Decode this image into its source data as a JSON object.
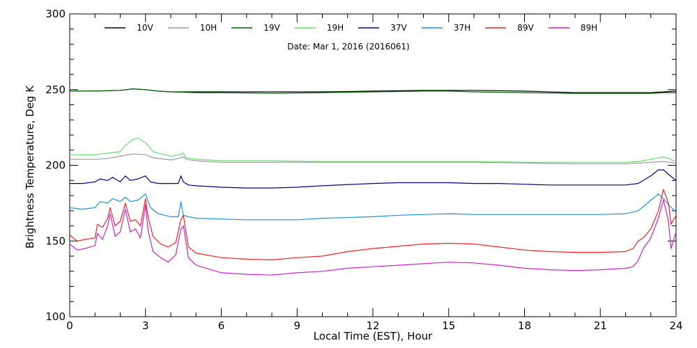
{
  "chart_data": {
    "type": "line",
    "title": "",
    "annotation": "Date: Mar  1, 2016 (2016061)",
    "xlabel": "Local Time (EST), Hour",
    "ylabel": "Brightness Temperature, Deg K",
    "xlim": [
      0,
      24
    ],
    "ylim": [
      100,
      300
    ],
    "xticks": [
      0,
      3,
      6,
      9,
      12,
      15,
      18,
      21,
      24
    ],
    "yticks": [
      100,
      150,
      200,
      250,
      300
    ],
    "grid": false,
    "legend_position": "top, single row",
    "series": [
      {
        "name": "10V",
        "color": "#000000",
        "x": [
          0,
          1,
          2,
          2.5,
          3,
          3.5,
          4,
          5,
          6,
          8,
          10,
          12,
          14,
          15,
          16,
          18,
          20,
          22,
          23,
          23.5,
          24
        ],
        "y": [
          249,
          249,
          249.5,
          250.5,
          250,
          249,
          248.5,
          248.5,
          248.5,
          248.5,
          248.5,
          249,
          249.5,
          249.5,
          249.5,
          249,
          248,
          248,
          248,
          248.5,
          249
        ]
      },
      {
        "name": "10H",
        "color": "#999999",
        "x": [
          0,
          1,
          1.5,
          2,
          2.5,
          3,
          3.3,
          4,
          4.4,
          4.5,
          4.6,
          5,
          6,
          8,
          10,
          12,
          14,
          16,
          18,
          20,
          22,
          23,
          23.5,
          23.8,
          24
        ],
        "y": [
          204,
          204,
          204.5,
          206,
          207.5,
          207,
          205,
          203.5,
          205,
          205.5,
          204,
          203,
          202,
          202,
          202,
          202,
          202,
          202,
          201.5,
          201,
          201,
          202,
          202.5,
          202,
          201
        ]
      },
      {
        "name": "19V",
        "color": "#006400",
        "x": [
          0,
          1,
          2,
          2.5,
          3,
          3.5,
          4,
          5,
          6,
          8,
          10,
          12,
          14,
          15,
          16,
          18,
          20,
          22,
          23,
          23.5,
          24
        ],
        "y": [
          249,
          249,
          249.5,
          250.5,
          250,
          249,
          248.5,
          248,
          248,
          247.5,
          248,
          248.5,
          249,
          249,
          248.5,
          248,
          247.5,
          247.5,
          247.5,
          248,
          248
        ]
      },
      {
        "name": "19H",
        "color": "#66dd66",
        "x": [
          0,
          1,
          1.5,
          2,
          2.2,
          2.5,
          2.7,
          3,
          3.3,
          4,
          4.4,
          4.5,
          4.6,
          5,
          6,
          8,
          10,
          12,
          14,
          16,
          18,
          20,
          22,
          22.5,
          23,
          23.5,
          23.8,
          24
        ],
        "y": [
          207,
          207,
          208,
          209,
          213,
          217,
          218,
          215,
          209,
          206,
          207,
          208,
          205,
          204,
          203,
          203,
          202.5,
          202.5,
          202.5,
          202.5,
          202,
          202,
          202,
          202.5,
          204,
          205.5,
          204,
          202
        ]
      },
      {
        "name": "37V",
        "color": "#00008b",
        "x": [
          0,
          0.5,
          1,
          1.2,
          1.5,
          1.7,
          2,
          2.2,
          2.4,
          2.7,
          3,
          3.2,
          3.5,
          4,
          4.3,
          4.4,
          4.5,
          4.7,
          5,
          6,
          7,
          8,
          9,
          10,
          12,
          13,
          14,
          15,
          16,
          17,
          18,
          19,
          20,
          21,
          22,
          22.5,
          23,
          23.3,
          23.5,
          23.7,
          24
        ],
        "y": [
          188,
          188,
          189,
          191,
          190,
          192,
          189,
          193,
          190,
          191,
          193,
          189,
          188,
          188,
          188,
          193,
          189,
          187,
          186.5,
          185.5,
          185,
          185,
          185.5,
          186.5,
          188,
          188.5,
          188.5,
          188.5,
          188,
          188,
          187.5,
          187,
          187,
          187,
          187,
          188,
          193,
          197,
          197,
          194,
          190
        ]
      },
      {
        "name": "37H",
        "color": "#1e8fdc",
        "x": [
          0,
          0.5,
          1,
          1.2,
          1.5,
          1.7,
          2,
          2.2,
          2.4,
          2.7,
          3,
          3.2,
          3.5,
          4,
          4.3,
          4.4,
          4.5,
          4.7,
          5,
          6,
          7,
          8,
          9,
          10,
          12,
          13,
          14,
          15,
          16,
          17,
          18,
          19,
          20,
          21,
          22,
          22.5,
          22.8,
          23,
          23.3,
          23.5,
          23.7,
          24
        ],
        "y": [
          172,
          171,
          172,
          176,
          175,
          178,
          176,
          179,
          176,
          177,
          181,
          172,
          168,
          166,
          166,
          176,
          167,
          166,
          165,
          164.5,
          164,
          164,
          164,
          165,
          166,
          167,
          167.5,
          168,
          167.5,
          167.5,
          167.5,
          167.5,
          167.5,
          167.5,
          168,
          170,
          174,
          177,
          181,
          178,
          174,
          169
        ]
      },
      {
        "name": "89V",
        "color": "#ee2222",
        "x": [
          0,
          0.3,
          0.6,
          1,
          1.1,
          1.3,
          1.5,
          1.6,
          1.8,
          2,
          2.2,
          2.4,
          2.6,
          2.8,
          3,
          3.1,
          3.3,
          3.6,
          3.9,
          4.2,
          4.4,
          4.5,
          4.7,
          5,
          6,
          7,
          8,
          9,
          10,
          11,
          12,
          13,
          14,
          15,
          16,
          17,
          18,
          19,
          20,
          21,
          22,
          22.3,
          22.5,
          22.7,
          23,
          23.3,
          23.5,
          23.7,
          23.8,
          24
        ],
        "y": [
          154,
          150,
          151,
          152,
          161,
          159,
          165,
          172,
          160,
          163,
          175,
          163,
          164,
          160,
          178,
          166,
          153,
          148,
          146,
          149,
          164,
          167,
          146,
          142,
          139,
          138,
          137.5,
          139,
          140,
          143,
          145,
          146.5,
          148,
          148.5,
          148,
          146,
          144,
          143,
          142.5,
          142.5,
          143,
          145,
          150,
          152,
          158,
          170,
          184,
          175,
          161,
          167
        ]
      },
      {
        "name": "89H",
        "color": "#cc22cc",
        "x": [
          0,
          0.3,
          0.6,
          1,
          1.1,
          1.3,
          1.5,
          1.6,
          1.8,
          2,
          2.2,
          2.4,
          2.6,
          2.8,
          3,
          3.1,
          3.3,
          3.6,
          3.9,
          4.2,
          4.4,
          4.5,
          4.7,
          5,
          6,
          7,
          8,
          9,
          10,
          11,
          12,
          13,
          14,
          15,
          16,
          17,
          18,
          19,
          20,
          21,
          22,
          22.3,
          22.5,
          22.7,
          23,
          23.3,
          23.5,
          23.7,
          23.8,
          24
        ],
        "y": [
          148,
          144,
          145,
          147,
          155,
          151,
          160,
          168,
          153,
          156,
          171,
          156,
          158,
          152,
          174,
          157,
          143,
          139,
          136,
          141,
          158,
          160,
          139,
          134,
          129,
          128,
          127.5,
          129,
          130,
          132,
          133,
          134,
          135,
          136,
          135.5,
          134,
          132,
          131,
          130.5,
          131,
          132,
          133,
          137,
          145,
          152,
          165,
          177,
          163,
          145,
          156
        ]
      }
    ]
  }
}
